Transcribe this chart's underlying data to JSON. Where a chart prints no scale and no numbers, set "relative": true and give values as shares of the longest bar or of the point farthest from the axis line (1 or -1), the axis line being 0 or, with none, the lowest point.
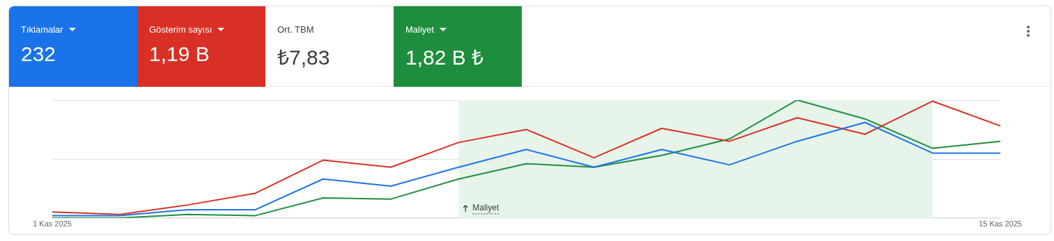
{
  "chart_data": [
    {
      "type": "other",
      "categories": [
        "Tıklamalar",
        "Gösterim sayısı",
        "Ort. TBM",
        "Maliyet"
      ],
      "value_labels": [
        "232",
        "1,19 B",
        "₺7,83",
        "1,82 B ₺"
      ],
      "colors": [
        "#1a73e8",
        "#d93025",
        "#ffffff",
        "#1e8e3e"
      ]
    },
    {
      "type": "line",
      "relative": true,
      "marker": "none",
      "ref_lines": [
        {
          "axis": "y",
          "value": 0.5,
          "color": "#e0e0e0"
        },
        {
          "axis": "y",
          "value": 1,
          "color": "#e0e0e0"
        }
      ],
      "x": [
        "2025-11-01",
        "2025-11-02",
        "2025-11-03",
        "2025-11-04",
        "2025-11-05",
        "2025-11-06",
        "2025-11-07",
        "2025-11-08",
        "2025-11-09",
        "2025-11-10",
        "2025-11-11",
        "2025-11-12",
        "2025-11-13",
        "2025-11-14",
        "2025-11-15"
      ],
      "xlim": [
        "2025-11-01",
        "2025-11-15"
      ],
      "xticks": [
        {
          "value": "2025-11-01",
          "label": "1 Kas 2025"
        },
        {
          "value": "2025-11-15",
          "label": "15 Kas 2025"
        }
      ],
      "bands": [
        {
          "axis": "x",
          "from": "2025-11-07",
          "to": "2025-11-14",
          "label": "Maliyet",
          "color": "#e6f4ea"
        }
      ],
      "series": [
        {
          "color": "#1a73e8",
          "values": [
            0.02,
            0.02,
            0.07,
            0.07,
            0.33,
            0.27,
            0.43,
            0.58,
            0.43,
            0.58,
            0.45,
            0.65,
            0.81,
            0.55,
            0.55
          ]
        },
        {
          "color": "#d93025",
          "values": [
            0.05,
            0.03,
            0.11,
            0.21,
            0.49,
            0.43,
            0.64,
            0.75,
            0.51,
            0.76,
            0.65,
            0.85,
            0.71,
            0.99,
            0.78
          ]
        },
        {
          "color": "#1e8e3e",
          "values": [
            0,
            0,
            0.03,
            0.02,
            0.17,
            0.16,
            0.33,
            0.46,
            0.43,
            0.53,
            0.67,
            1,
            0.84,
            0.59,
            0.65
          ]
        }
      ]
    }
  ]
}
